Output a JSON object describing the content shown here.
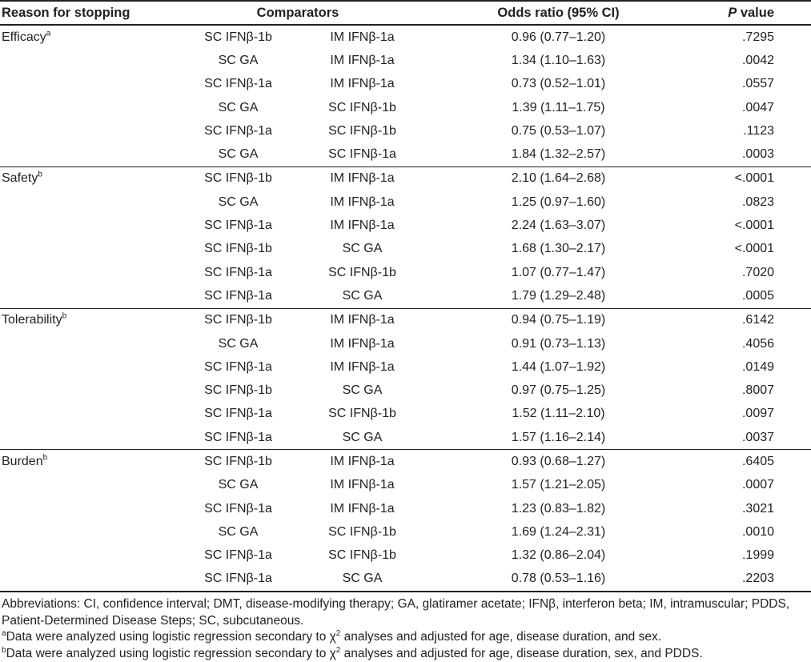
{
  "table": {
    "headers": {
      "reason": "Reason for stopping",
      "comparators": "Comparators",
      "odds_ratio": "Odds ratio (95% CI)",
      "p_italic": "P",
      "p_rest": " value"
    },
    "sections": [
      {
        "label": "Efficacy",
        "sup": "a",
        "rows": [
          {
            "comp1": "SC IFNβ-1b",
            "comp2": "IM IFNβ-1a",
            "or": "0.96 (0.77–1.20)",
            "p": ".7295"
          },
          {
            "comp1": "SC GA",
            "comp2": "IM IFNβ-1a",
            "or": "1.34 (1.10–1.63)",
            "p": ".0042"
          },
          {
            "comp1": "SC IFNβ-1a",
            "comp2": "IM IFNβ-1a",
            "or": "0.73 (0.52–1.01)",
            "p": ".0557"
          },
          {
            "comp1": "SC GA",
            "comp2": "SC IFNβ-1b",
            "or": "1.39 (1.11–1.75)",
            "p": ".0047"
          },
          {
            "comp1": "SC IFNβ-1a",
            "comp2": "SC IFNβ-1b",
            "or": "0.75 (0.53–1.07)",
            "p": ".1123"
          },
          {
            "comp1": "SC GA",
            "comp2": "SC IFNβ-1a",
            "or": "1.84 (1.32–2.57)",
            "p": ".0003"
          }
        ]
      },
      {
        "label": "Safety",
        "sup": "b",
        "rows": [
          {
            "comp1": "SC IFNβ-1b",
            "comp2": "IM IFNβ-1a",
            "or": "2.10 (1.64–2.68)",
            "p": "<.0001"
          },
          {
            "comp1": "SC GA",
            "comp2": "IM IFNβ-1a",
            "or": "1.25 (0.97–1.60)",
            "p": ".0823"
          },
          {
            "comp1": "SC IFNβ-1a",
            "comp2": "IM IFNβ-1a",
            "or": "2.24 (1.63–3.07)",
            "p": "<.0001"
          },
          {
            "comp1": "SC IFNβ-1b",
            "comp2": "SC GA",
            "or": "1.68 (1.30–2.17)",
            "p": "<.0001"
          },
          {
            "comp1": "SC IFNβ-1a",
            "comp2": "SC IFNβ-1b",
            "or": "1.07 (0.77–1.47)",
            "p": ".7020"
          },
          {
            "comp1": "SC IFNβ-1a",
            "comp2": "SC GA",
            "or": "1.79 (1.29–2.48)",
            "p": ".0005"
          }
        ]
      },
      {
        "label": "Tolerability",
        "sup": "b",
        "rows": [
          {
            "comp1": "SC IFNβ-1b",
            "comp2": "IM IFNβ-1a",
            "or": "0.94 (0.75–1.19)",
            "p": ".6142"
          },
          {
            "comp1": "SC GA",
            "comp2": "IM IFNβ-1a",
            "or": "0.91 (0.73–1.13)",
            "p": ".4056"
          },
          {
            "comp1": "SC IFNβ-1a",
            "comp2": "IM IFNβ-1a",
            "or": "1.44 (1.07–1.92)",
            "p": ".0149"
          },
          {
            "comp1": "SC IFNβ-1b",
            "comp2": "SC GA",
            "or": "0.97 (0.75–1.25)",
            "p": ".8007"
          },
          {
            "comp1": "SC IFNβ-1a",
            "comp2": "SC IFNβ-1b",
            "or": "1.52 (1.11–2.10)",
            "p": ".0097"
          },
          {
            "comp1": "SC IFNβ-1a",
            "comp2": "SC GA",
            "or": "1.57 (1.16–2.14)",
            "p": ".0037"
          }
        ]
      },
      {
        "label": "Burden",
        "sup": "b",
        "rows": [
          {
            "comp1": "SC IFNβ-1b",
            "comp2": "IM IFNβ-1a",
            "or": "0.93 (0.68–1.27)",
            "p": ".6405"
          },
          {
            "comp1": "SC GA",
            "comp2": "IM IFNβ-1a",
            "or": "1.57 (1.21–2.05)",
            "p": ".0007"
          },
          {
            "comp1": "SC IFNβ-1a",
            "comp2": "IM IFNβ-1a",
            "or": "1.23 (0.83–1.82)",
            "p": ".3021"
          },
          {
            "comp1": "SC GA",
            "comp2": "SC IFNβ-1b",
            "or": "1.69 (1.24–2.31)",
            "p": ".0010"
          },
          {
            "comp1": "SC IFNβ-1a",
            "comp2": "SC IFNβ-1b",
            "or": "1.32 (0.86–2.04)",
            "p": ".1999"
          },
          {
            "comp1": "SC IFNβ-1a",
            "comp2": "SC GA",
            "or": "0.78 (0.53–1.16)",
            "p": ".2203"
          }
        ]
      }
    ]
  },
  "footnotes": {
    "abbreviations": "Abbreviations: CI, confidence interval; DMT, disease-modifying therapy; GA, glatiramer acetate; IFNβ, interferon beta; IM, intramuscular; PDDS, Patient-Determined Disease Steps; SC, subcutaneous.",
    "note_a": {
      "sup": "a",
      "pre": "Data were analyzed using logistic regression secondary to χ",
      "exp": "2",
      "post": " analyses and adjusted for age, disease duration, and sex."
    },
    "note_b": {
      "sup": "b",
      "pre": "Data were analyzed using logistic regression secondary to χ",
      "exp": "2",
      "post": " analyses and adjusted for age, disease duration, sex, and PDDS."
    }
  },
  "colors": {
    "text": "#231f20",
    "rule": "#231f20",
    "background": "#ffffff"
  }
}
